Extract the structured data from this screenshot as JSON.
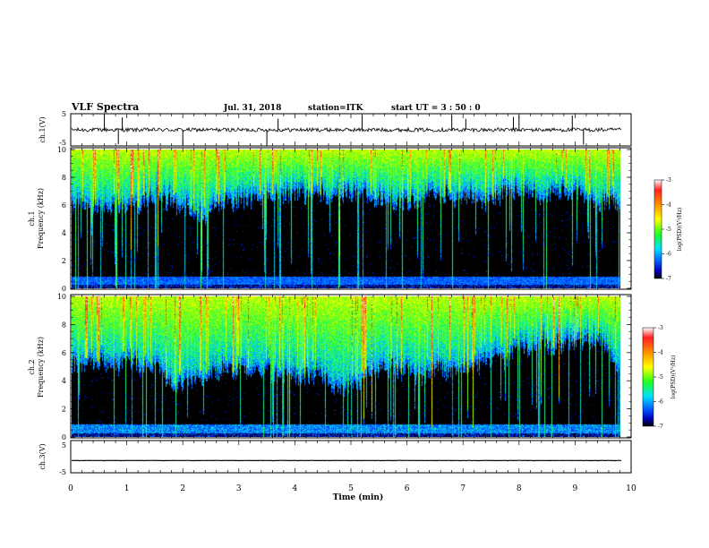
{
  "header": {
    "title": "VLF Spectra",
    "date": "Jul. 31, 2018",
    "station": "station=ITK",
    "start_ut": "start UT =  3 : 50 : 0"
  },
  "chart_data": [
    {
      "type": "line",
      "panel": "ch1-waveform",
      "ylabel": "ch.1(V)",
      "ylim": [
        -5,
        5
      ],
      "yticks": [
        "5",
        "-5"
      ],
      "xlim": [
        0,
        10
      ],
      "color": "#000000",
      "baseline": 0,
      "noise_amplitude": 0.6,
      "spike_times": [
        0.6,
        0.85,
        0.92,
        2.0,
        3.5,
        3.7,
        5.2,
        6.8,
        7.05,
        7.9,
        8.0,
        8.95,
        9.15
      ]
    },
    {
      "type": "heatmap",
      "panel": "ch1-spectrogram",
      "ylabel": "ch.1 Frequency (kHz)",
      "ylim": [
        0,
        10
      ],
      "yticks": [
        "0",
        "2",
        "4",
        "6",
        "8",
        "10"
      ],
      "xlim": [
        0,
        9.83
      ],
      "colorbar": {
        "label": "log(PSD)(V²/Hz)",
        "range": [
          -7,
          -3
        ],
        "ticks": [
          "-3",
          "-4",
          "-5",
          "-6",
          "-7"
        ]
      }
    },
    {
      "type": "heatmap",
      "panel": "ch2-spectrogram",
      "ylabel": "ch.2 Frequency (kHz)",
      "ylim": [
        0,
        10
      ],
      "yticks": [
        "0",
        "2",
        "4",
        "6",
        "8",
        "10"
      ],
      "xlim": [
        0,
        9.83
      ],
      "colorbar": {
        "label": "log(PSD)(V²/Hz)",
        "range": [
          -7,
          -3
        ],
        "ticks": [
          "-3",
          "-4",
          "-5",
          "-6",
          "-7"
        ]
      }
    },
    {
      "type": "line",
      "panel": "ch3-waveform",
      "ylabel": "ch.3(V)",
      "ylim": [
        -5,
        5
      ],
      "yticks": [
        "5",
        "-5"
      ],
      "xlim": [
        0,
        10
      ],
      "color": "#000000",
      "baseline": -1.2,
      "noise_amplitude": 0.05
    }
  ],
  "xaxis": {
    "label": "Time (min)",
    "range": [
      0,
      10
    ],
    "ticks": [
      "0",
      "1",
      "2",
      "3",
      "4",
      "5",
      "6",
      "7",
      "8",
      "9",
      "10"
    ]
  }
}
